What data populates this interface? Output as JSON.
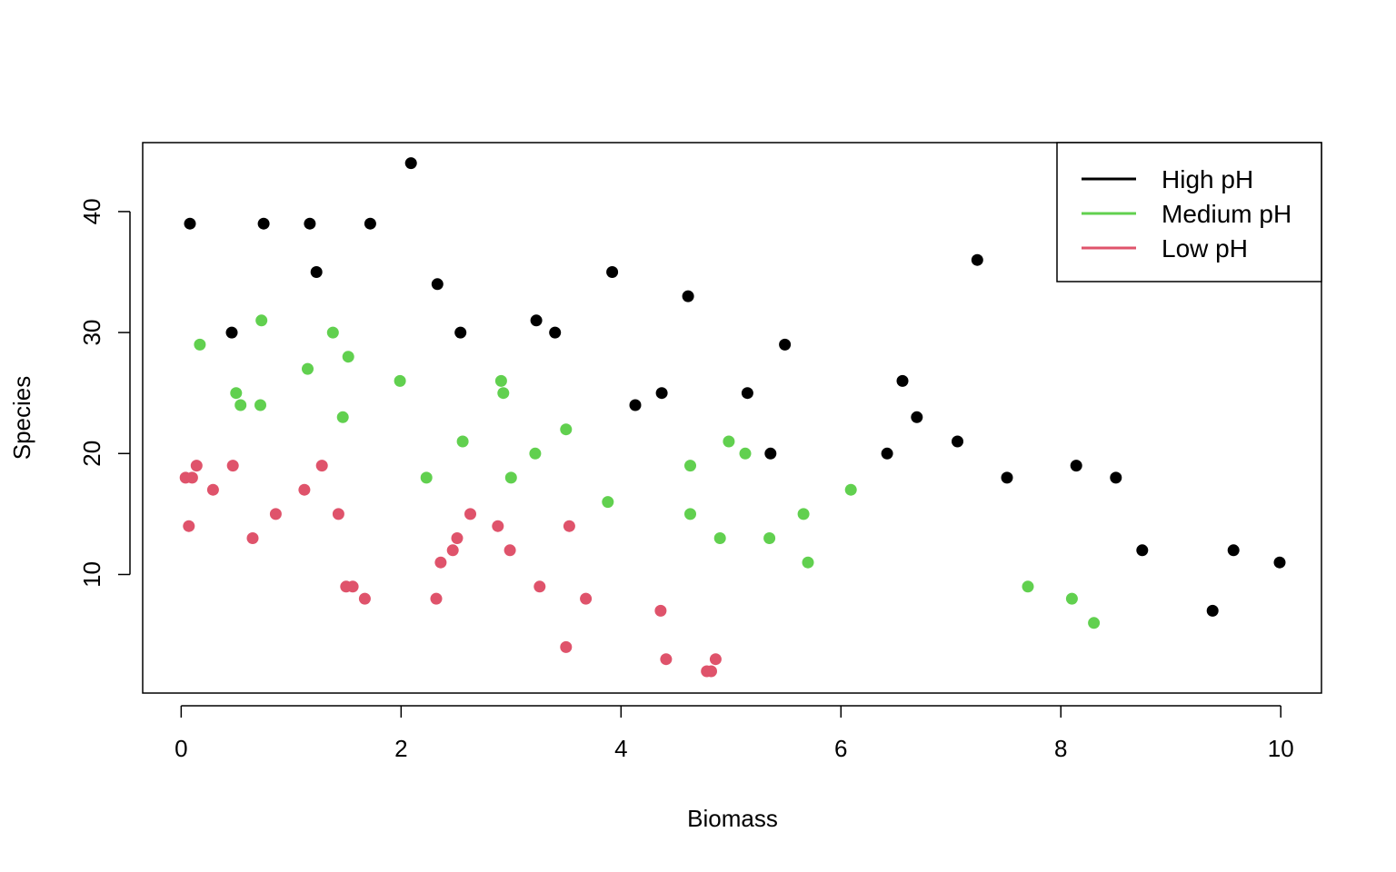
{
  "chart_data": {
    "type": "scatter",
    "title": "",
    "xlabel": "Biomass",
    "ylabel": "Species",
    "xlim": [
      -0.35,
      10.37
    ],
    "ylim": [
      0.2,
      45.7
    ],
    "xticks": [
      0,
      2,
      4,
      6,
      8,
      10
    ],
    "yticks": [
      10,
      20,
      30,
      40
    ],
    "grid": false,
    "legend_position": "top-right",
    "series": [
      {
        "name": "High pH",
        "color": "#000000",
        "points": [
          [
            0.08,
            39
          ],
          [
            0.75,
            39
          ],
          [
            1.17,
            39
          ],
          [
            1.72,
            39
          ],
          [
            2.09,
            44
          ],
          [
            0.46,
            30
          ],
          [
            1.23,
            35
          ],
          [
            2.33,
            34
          ],
          [
            2.54,
            30
          ],
          [
            3.23,
            31
          ],
          [
            3.4,
            30
          ],
          [
            3.92,
            35
          ],
          [
            4.13,
            24
          ],
          [
            4.37,
            25
          ],
          [
            4.61,
            33
          ],
          [
            5.15,
            25
          ],
          [
            5.36,
            20
          ],
          [
            5.49,
            29
          ],
          [
            6.42,
            20
          ],
          [
            6.56,
            26
          ],
          [
            6.69,
            23
          ],
          [
            7.06,
            21
          ],
          [
            7.24,
            36
          ],
          [
            7.51,
            18
          ],
          [
            8.14,
            19
          ],
          [
            8.5,
            18
          ],
          [
            8.74,
            12
          ],
          [
            9.38,
            7
          ],
          [
            9.57,
            12
          ],
          [
            9.99,
            11
          ]
        ]
      },
      {
        "name": "Medium pH",
        "color": "#61d04f",
        "points": [
          [
            0.17,
            29
          ],
          [
            0.5,
            25
          ],
          [
            0.54,
            24
          ],
          [
            0.72,
            24
          ],
          [
            0.73,
            31
          ],
          [
            1.15,
            27
          ],
          [
            1.38,
            30
          ],
          [
            1.47,
            23
          ],
          [
            1.52,
            28
          ],
          [
            1.99,
            26
          ],
          [
            2.23,
            18
          ],
          [
            2.56,
            21
          ],
          [
            2.91,
            26
          ],
          [
            2.93,
            25
          ],
          [
            3.0,
            18
          ],
          [
            3.22,
            20
          ],
          [
            3.5,
            22
          ],
          [
            3.88,
            16
          ],
          [
            4.63,
            19
          ],
          [
            4.63,
            15
          ],
          [
            4.9,
            13
          ],
          [
            4.98,
            21
          ],
          [
            5.13,
            20
          ],
          [
            5.35,
            13
          ],
          [
            5.66,
            15
          ],
          [
            5.7,
            11
          ],
          [
            6.09,
            17
          ],
          [
            7.7,
            9
          ],
          [
            8.1,
            8
          ],
          [
            8.3,
            6
          ]
        ]
      },
      {
        "name": "Low pH",
        "color": "#df536b",
        "points": [
          [
            0.04,
            18
          ],
          [
            0.07,
            14
          ],
          [
            0.1,
            18
          ],
          [
            0.14,
            19
          ],
          [
            0.29,
            17
          ],
          [
            0.47,
            19
          ],
          [
            0.65,
            13
          ],
          [
            0.86,
            15
          ],
          [
            1.12,
            17
          ],
          [
            1.28,
            19
          ],
          [
            1.43,
            15
          ],
          [
            1.5,
            9
          ],
          [
            1.56,
            9
          ],
          [
            1.67,
            8
          ],
          [
            2.32,
            8
          ],
          [
            2.36,
            11
          ],
          [
            2.47,
            12
          ],
          [
            2.51,
            13
          ],
          [
            2.63,
            15
          ],
          [
            2.88,
            14
          ],
          [
            2.99,
            12
          ],
          [
            3.26,
            9
          ],
          [
            3.5,
            4
          ],
          [
            3.53,
            14
          ],
          [
            3.68,
            8
          ],
          [
            4.36,
            7
          ],
          [
            4.41,
            3
          ],
          [
            4.78,
            2
          ],
          [
            4.82,
            2
          ],
          [
            4.86,
            3
          ]
        ]
      }
    ]
  }
}
